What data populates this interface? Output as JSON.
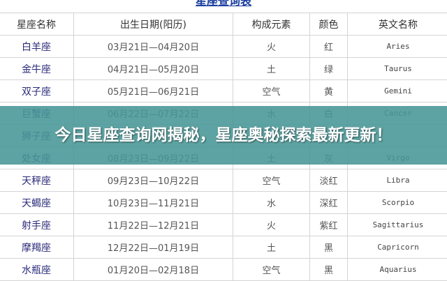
{
  "title": "星座查询表",
  "headers": [
    "星座名称",
    "出生日期(阳历)",
    "构成元素",
    "颜色",
    "英文名称"
  ],
  "rows": [
    [
      "白羊座",
      "03月21日—04月20日",
      "火",
      "红",
      "Aries"
    ],
    [
      "金牛座",
      "04月21日—05月20日",
      "土",
      "绿",
      "Taurus"
    ],
    [
      "双子座",
      "05月21日—06月21日",
      "空气",
      "黄",
      "Gemini"
    ],
    [
      "巨蟹座",
      "06月22日—07月22日",
      "水",
      "白",
      "Cancer"
    ],
    [
      "狮子座",
      "",
      "",
      "",
      ""
    ],
    [
      "处女座",
      "08月23日—09月22日",
      "土",
      "灰",
      "Virgo"
    ],
    [
      "天秤座",
      "09月23日—10月22日",
      "空气",
      "淡红",
      "Libra"
    ],
    [
      "天蝎座",
      "10月23日—11月21日",
      "水",
      "深红",
      "Scorpio"
    ],
    [
      "射手座",
      "11月22日—12月21日",
      "火",
      "紫红",
      "Sagittarius"
    ],
    [
      "摩羯座",
      "12月22日—01月19日",
      "土",
      "黑",
      "Capricorn"
    ],
    [
      "水瓶座",
      "01月20日—02月18日",
      "空气",
      "黑",
      "Aquarius"
    ]
  ],
  "banner": "今日星座查询网揭秘，星座奥秘探索最新更新！",
  "colors": {
    "banner": "#489696",
    "name_text": "#2a2a7a"
  }
}
